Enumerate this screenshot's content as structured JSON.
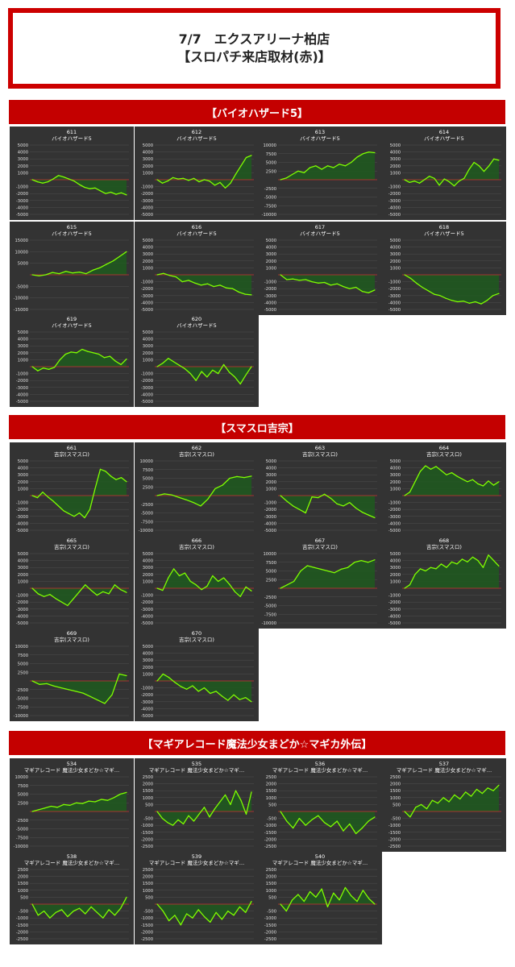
{
  "header": {
    "line1": "7/7　エクスアリーナ柏店",
    "line2": "【スロパチ来店取材(赤)】"
  },
  "sections": [
    {
      "title": "【バイオハザード5】"
    },
    {
      "title": "【スマスロ吉宗】"
    },
    {
      "title": "【マギアレコード魔法少女まどか☆マギカ外伝】"
    }
  ],
  "colors": {
    "line": "#7fff00",
    "fill": "#1f5a1f",
    "zero": "#cc3333",
    "panel": "#333333",
    "text": "#ffffff",
    "accent": "#c40000"
  },
  "chart_data": [
    {
      "type": "line",
      "number": "611",
      "machine": "バイオハザード5",
      "ylim": [
        -5000,
        5000
      ],
      "yticks": [
        5000,
        4000,
        3000,
        2000,
        1000,
        -1000,
        -2000,
        -3000,
        -4000,
        -5000
      ],
      "y": [
        0,
        -300,
        -500,
        -300,
        100,
        600,
        400,
        100,
        -200,
        -700,
        -1100,
        -1300,
        -1200,
        -1600,
        -2000,
        -1800,
        -2100,
        -1900,
        -2200
      ]
    },
    {
      "type": "line",
      "number": "612",
      "machine": "バイオハザード5",
      "ylim": [
        -5000,
        5000
      ],
      "yticks": [
        5000,
        4000,
        3000,
        2000,
        1000,
        -1000,
        -2000,
        -3000,
        -4000,
        -5000
      ],
      "y": [
        0,
        -500,
        -200,
        300,
        100,
        200,
        -100,
        200,
        -300,
        0,
        -200,
        -800,
        -400,
        -1200,
        -500,
        800,
        2000,
        3200,
        3500
      ]
    },
    {
      "type": "line",
      "number": "613",
      "machine": "バイオハザード5",
      "ylim": [
        -10000,
        10000
      ],
      "yticks": [
        10000,
        7500,
        5000,
        2500,
        -2500,
        -5000,
        -7500,
        -10000
      ],
      "y": [
        0,
        500,
        1500,
        2500,
        2000,
        3500,
        4000,
        3000,
        4000,
        3500,
        4500,
        4000,
        5000,
        6500,
        7500,
        8000,
        7800
      ]
    },
    {
      "type": "line",
      "number": "614",
      "machine": "バイオハザード5",
      "ylim": [
        -5000,
        5000
      ],
      "yticks": [
        5000,
        4000,
        3000,
        2000,
        1000,
        -1000,
        -2000,
        -3000,
        -4000,
        -5000
      ],
      "y": [
        0,
        -400,
        -200,
        -500,
        0,
        500,
        200,
        -800,
        100,
        -300,
        -900,
        -200,
        200,
        1500,
        2500,
        2000,
        1200,
        2000,
        3000,
        2800
      ]
    },
    {
      "type": "line",
      "number": "615",
      "machine": "バイオハザード5",
      "ylim": [
        -15000,
        15000
      ],
      "yticks": [
        15000,
        10000,
        5000,
        -5000,
        -10000,
        -15000
      ],
      "y": [
        0,
        -500,
        0,
        1000,
        500,
        1500,
        800,
        1200,
        500,
        2000,
        3000,
        4500,
        6000,
        8000,
        10000
      ]
    },
    {
      "type": "line",
      "number": "616",
      "machine": "バイオハザード5",
      "ylim": [
        -5000,
        5000
      ],
      "yticks": [
        5000,
        4000,
        3000,
        2000,
        1000,
        -1000,
        -2000,
        -3000,
        -4000,
        -5000
      ],
      "y": [
        0,
        200,
        -100,
        -300,
        -1000,
        -800,
        -1200,
        -1500,
        -1300,
        -1700,
        -1500,
        -1900,
        -2000,
        -2500,
        -2800,
        -2900
      ]
    },
    {
      "type": "line",
      "number": "617",
      "machine": "バイオハザード5",
      "ylim": [
        -5000,
        5000
      ],
      "yticks": [
        5000,
        4000,
        3000,
        2000,
        1000,
        -1000,
        -2000,
        -3000,
        -4000,
        -5000
      ],
      "y": [
        0,
        -700,
        -600,
        -800,
        -700,
        -1000,
        -1200,
        -1100,
        -1500,
        -1300,
        -1700,
        -2000,
        -1800,
        -2400,
        -2600,
        -2200
      ]
    },
    {
      "type": "line",
      "number": "618",
      "machine": "バイオハザード5",
      "ylim": [
        -5000,
        5000
      ],
      "yticks": [
        5000,
        4000,
        3000,
        2000,
        1000,
        -1000,
        -2000,
        -3000,
        -4000,
        -5000
      ],
      "y": [
        0,
        -500,
        -1200,
        -1800,
        -2300,
        -2800,
        -3000,
        -3400,
        -3700,
        -3900,
        -3800,
        -4100,
        -3900,
        -4200,
        -3700,
        -3000,
        -2700
      ]
    },
    {
      "type": "line",
      "number": "619",
      "machine": "バイオハザード5",
      "ylim": [
        -5000,
        5000
      ],
      "yticks": [
        5000,
        4000,
        3000,
        2000,
        1000,
        -1000,
        -2000,
        -3000,
        -4000,
        -5000
      ],
      "y": [
        0,
        -600,
        -200,
        -400,
        -100,
        1000,
        1800,
        2100,
        2000,
        2500,
        2200,
        2000,
        1800,
        1300,
        1500,
        800,
        300,
        1100
      ]
    },
    {
      "type": "line",
      "number": "620",
      "machine": "バイオハザード5",
      "ylim": [
        -5000,
        5000
      ],
      "yticks": [
        5000,
        4000,
        3000,
        2000,
        1000,
        -1000,
        -2000,
        -3000,
        -4000,
        -5000
      ],
      "y": [
        0,
        500,
        1200,
        700,
        200,
        -300,
        -1000,
        -2000,
        -700,
        -1500,
        -500,
        -1000,
        300,
        -800,
        -1500,
        -2500,
        -1200,
        0
      ]
    },
    {
      "type": "line",
      "number": "661",
      "machine": "吉宗(スマスロ)",
      "ylim": [
        -5000,
        5000
      ],
      "yticks": [
        5000,
        4000,
        3000,
        2000,
        1000,
        -1000,
        -2000,
        -3000,
        -4000,
        -5000
      ],
      "y": [
        0,
        -300,
        500,
        -200,
        -800,
        -1500,
        -2200,
        -2600,
        -3000,
        -2500,
        -3200,
        -2000,
        1000,
        3800,
        3500,
        2800,
        2300,
        2600,
        2000
      ]
    },
    {
      "type": "line",
      "number": "662",
      "machine": "吉宗(スマスロ)",
      "ylim": [
        -10000,
        10000
      ],
      "yticks": [
        10000,
        7500,
        5000,
        2500,
        -2500,
        -5000,
        -7500,
        -10000
      ],
      "y": [
        0,
        500,
        200,
        -500,
        -1200,
        -2000,
        -3000,
        -1000,
        2000,
        3000,
        5000,
        5500,
        5200,
        5600
      ]
    },
    {
      "type": "line",
      "number": "663",
      "machine": "吉宗(スマスロ)",
      "ylim": [
        -5000,
        5000
      ],
      "yticks": [
        5000,
        4000,
        3000,
        2000,
        1000,
        -1000,
        -2000,
        -3000,
        -4000,
        -5000
      ],
      "y": [
        0,
        -800,
        -1500,
        -2000,
        -2500,
        -200,
        -300,
        200,
        -400,
        -1200,
        -1500,
        -1000,
        -1800,
        -2400,
        -2800,
        -3200
      ]
    },
    {
      "type": "line",
      "number": "664",
      "machine": "吉宗(スマスロ)",
      "ylim": [
        -5000,
        5000
      ],
      "yticks": [
        5000,
        4000,
        3000,
        2000,
        1000,
        -1000,
        -2000,
        -3000,
        -4000,
        -5000
      ],
      "y": [
        0,
        500,
        2000,
        3500,
        4300,
        3800,
        4200,
        3600,
        3000,
        3300,
        2800,
        2400,
        2000,
        2300,
        1700,
        1400,
        2100,
        1500,
        2000
      ]
    },
    {
      "type": "line",
      "number": "665",
      "machine": "吉宗(スマスロ)",
      "ylim": [
        -5000,
        5000
      ],
      "yticks": [
        5000,
        4000,
        3000,
        2000,
        1000,
        -1000,
        -2000,
        -3000,
        -4000,
        -5000
      ],
      "y": [
        0,
        -800,
        -1200,
        -900,
        -1500,
        -2000,
        -2500,
        -1500,
        -500,
        500,
        -300,
        -1000,
        -500,
        -800,
        500,
        -200,
        -600
      ]
    },
    {
      "type": "line",
      "number": "666",
      "machine": "吉宗(スマスロ)",
      "ylim": [
        -5000,
        5000
      ],
      "yticks": [
        5000,
        4000,
        3000,
        2000,
        1000,
        -1000,
        -2000,
        -3000,
        -4000,
        -5000
      ],
      "y": [
        0,
        -300,
        1500,
        2800,
        1800,
        2200,
        1000,
        500,
        -200,
        300,
        1800,
        1000,
        1500,
        600,
        -500,
        -1200,
        200,
        -400
      ]
    },
    {
      "type": "line",
      "number": "667",
      "machine": "吉宗(スマスロ)",
      "ylim": [
        -10000,
        10000
      ],
      "yticks": [
        10000,
        7500,
        5000,
        2500,
        -2500,
        -5000,
        -7500,
        -10000
      ],
      "y": [
        0,
        1000,
        2000,
        5000,
        6500,
        6000,
        5500,
        5000,
        4500,
        5500,
        6000,
        7500,
        8000,
        7500,
        8200
      ]
    },
    {
      "type": "line",
      "number": "668",
      "machine": "吉宗(スマスロ)",
      "ylim": [
        -5000,
        5000
      ],
      "yticks": [
        5000,
        4000,
        3000,
        2000,
        1000,
        -1000,
        -2000,
        -3000,
        -4000,
        -5000
      ],
      "y": [
        0,
        500,
        2000,
        2800,
        2500,
        3000,
        2800,
        3500,
        3000,
        3800,
        3500,
        4200,
        3800,
        4500,
        4000,
        3000,
        4800,
        4000,
        3200
      ]
    },
    {
      "type": "line",
      "number": "669",
      "machine": "吉宗(スマスロ)",
      "ylim": [
        -10000,
        10000
      ],
      "yticks": [
        10000,
        7500,
        5000,
        2500,
        -2500,
        -5000,
        -7500,
        -10000
      ],
      "y": [
        0,
        -1000,
        -800,
        -1500,
        -2000,
        -2500,
        -3000,
        -3500,
        -4500,
        -5500,
        -6500,
        -4000,
        2000,
        1500
      ]
    },
    {
      "type": "line",
      "number": "670",
      "machine": "吉宗(スマスロ)",
      "ylim": [
        -5000,
        5000
      ],
      "yticks": [
        5000,
        4000,
        3000,
        2000,
        1000,
        -1000,
        -2000,
        -3000,
        -4000,
        -5000
      ],
      "y": [
        0,
        1000,
        500,
        -200,
        -800,
        -1200,
        -700,
        -1500,
        -1000,
        -1800,
        -1500,
        -2200,
        -2800,
        -2000,
        -2700,
        -2400,
        -3000
      ]
    },
    {
      "type": "line",
      "number": "534",
      "machine": "マギアレコード 魔法少女まどか☆マギ…",
      "ylim": [
        -10000,
        10000
      ],
      "yticks": [
        10000,
        7500,
        5000,
        2500,
        -2500,
        -5000,
        -7500,
        -10000
      ],
      "y": [
        0,
        500,
        1000,
        1500,
        1200,
        2000,
        1800,
        2500,
        2300,
        3000,
        2800,
        3500,
        3200,
        4000,
        5000,
        5500
      ]
    },
    {
      "type": "line",
      "number": "535",
      "machine": "マギアレコード 魔法少女まどか☆マギ…",
      "ylim": [
        -2500,
        2500
      ],
      "yticks": [
        2500,
        2000,
        1500,
        1000,
        500,
        -500,
        -1000,
        -1500,
        -2000,
        -2500
      ],
      "y": [
        0,
        -500,
        -800,
        -1000,
        -600,
        -900,
        -300,
        -700,
        -200,
        300,
        -400,
        200,
        700,
        1200,
        500,
        1500,
        800,
        -200,
        1400
      ]
    },
    {
      "type": "line",
      "number": "536",
      "machine": "マギアレコード 魔法少女まどか☆マギ…",
      "ylim": [
        -2500,
        2500
      ],
      "yticks": [
        2500,
        2000,
        1500,
        1000,
        500,
        -500,
        -1000,
        -1500,
        -2000,
        -2500
      ],
      "y": [
        0,
        -700,
        -1200,
        -500,
        -1000,
        -600,
        -300,
        -800,
        -1100,
        -700,
        -1400,
        -900,
        -1600,
        -1200,
        -700,
        -400
      ]
    },
    {
      "type": "line",
      "number": "537",
      "machine": "マギアレコード 魔法少女まどか☆マギ…",
      "ylim": [
        -2500,
        2500
      ],
      "yticks": [
        2500,
        2000,
        1500,
        1000,
        500,
        -500,
        -1000,
        -1500,
        -2000,
        -2500
      ],
      "y": [
        0,
        -400,
        300,
        500,
        200,
        800,
        600,
        1000,
        700,
        1200,
        900,
        1400,
        1100,
        1600,
        1300,
        1700,
        1500,
        1900
      ]
    },
    {
      "type": "line",
      "number": "538",
      "machine": "マギアレコード 魔法少女まどか☆マギ…",
      "ylim": [
        -2500,
        2500
      ],
      "yticks": [
        2500,
        2000,
        1500,
        1000,
        500,
        -500,
        -1000,
        -1500,
        -2000,
        -2500
      ],
      "y": [
        0,
        -800,
        -500,
        -1000,
        -600,
        -400,
        -900,
        -500,
        -300,
        -700,
        -200,
        -600,
        -1000,
        -400,
        -800,
        -300,
        500
      ]
    },
    {
      "type": "line",
      "number": "539",
      "machine": "マギアレコード 魔法少女まどか☆マギ…",
      "ylim": [
        -2500,
        2500
      ],
      "yticks": [
        2500,
        2000,
        1500,
        1000,
        500,
        -500,
        -1000,
        -1500,
        -2000,
        -2500
      ],
      "y": [
        0,
        -500,
        -1200,
        -800,
        -1500,
        -700,
        -1000,
        -400,
        -900,
        -1300,
        -600,
        -1100,
        -500,
        -800,
        -200,
        -600,
        200
      ]
    },
    {
      "type": "line",
      "number": "540",
      "machine": "マギアレコード 魔法少女まどか☆マギ…",
      "ylim": [
        -2500,
        2500
      ],
      "yticks": [
        2500,
        2000,
        1500,
        1000,
        500,
        -500,
        -1000,
        -1500,
        -2000,
        -2500
      ],
      "y": [
        0,
        -500,
        300,
        700,
        200,
        900,
        500,
        1100,
        -200,
        800,
        300,
        1200,
        600,
        200,
        1000,
        400,
        0
      ]
    }
  ]
}
